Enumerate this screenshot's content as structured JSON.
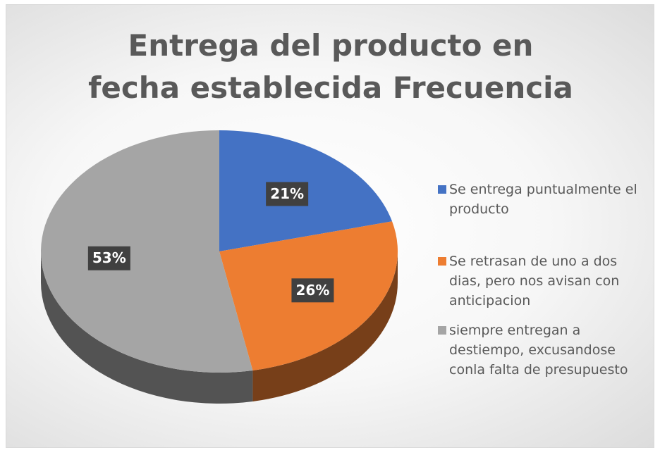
{
  "chart_data": {
    "type": "pie3d",
    "title": "Entrega del producto en fecha establecida  Frecuencia",
    "categories": [
      "Se entrega puntualmente el producto",
      "Se retrasan de uno a dos dias, pero nos avisan con anticipacion",
      "siempre entregan a destiempo, excusandose conla falta de presupuesto"
    ],
    "values": [
      21,
      26,
      53
    ],
    "value_labels": [
      "21%",
      "26%",
      "53%"
    ],
    "colors": [
      "#4472c4",
      "#ed7d31",
      "#a5a5a5"
    ],
    "legend": "right"
  }
}
